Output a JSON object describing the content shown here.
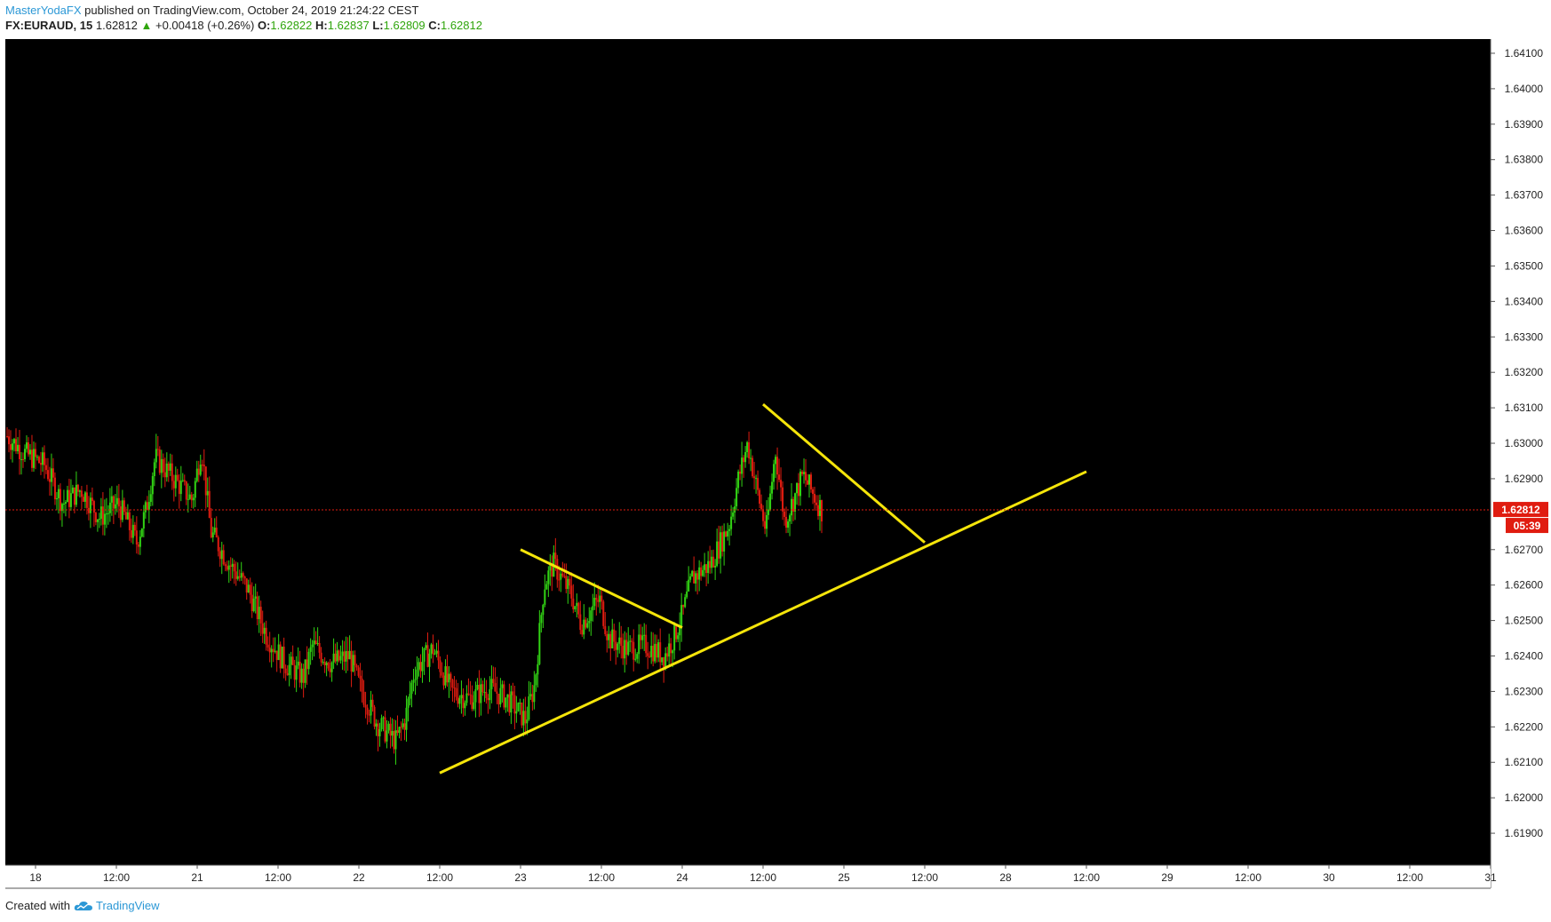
{
  "header": {
    "author": "MasterYodaFX",
    "published": " published on TradingView.com, October 24, 2019 21:24:22 CEST",
    "symbol": "FX:EURAUD, 15",
    "last": "1.62812",
    "arrow": "▲",
    "change": "+0.00418 (+0.26%)",
    "o_label": "O:",
    "o_value": "1.62822",
    "h_label": "H:",
    "h_value": "1.62837",
    "l_label": "L:",
    "l_value": "1.62809",
    "c_label": "C:",
    "c_value": "1.62812"
  },
  "footer": {
    "created_with": "Created with",
    "brand": "TradingView",
    "logo_icon": "tradingview-cloud-icon"
  },
  "colors": {
    "background": "#000000",
    "bull": "#32d414",
    "bear": "#e01c10",
    "trendline": "#f5e50a",
    "price_line": "#e01c10",
    "axis_text": "#222222"
  },
  "chart_data": {
    "type": "candlestick",
    "symbol": "FX:EURAUD",
    "interval": "15",
    "ylim": [
      1.6181,
      1.6414
    ],
    "y_ticks": [
      "1.64100",
      "1.64000",
      "1.63900",
      "1.63800",
      "1.63700",
      "1.63600",
      "1.63500",
      "1.63400",
      "1.63300",
      "1.63200",
      "1.63100",
      "1.63000",
      "1.62900",
      "1.62700",
      "1.62600",
      "1.62500",
      "1.62400",
      "1.62300",
      "1.62200",
      "1.62100",
      "1.62000",
      "1.61900"
    ],
    "x_ticks": [
      "18",
      "12:00",
      "21",
      "12:00",
      "22",
      "12:00",
      "23",
      "12:00",
      "24",
      "12:00",
      "25",
      "12:00",
      "28",
      "12:00",
      "29",
      "12:00",
      "30",
      "12:00",
      "31"
    ],
    "last_price": "1.62812",
    "countdown": "05:39",
    "price_path": [
      [
        0,
        1.6302
      ],
      [
        0.02,
        1.6297
      ],
      [
        0.04,
        1.6294
      ],
      [
        0.06,
        1.6283
      ],
      [
        0.08,
        1.6287
      ],
      [
        0.1,
        1.6279
      ],
      [
        0.12,
        1.6283
      ],
      [
        0.14,
        1.6272
      ],
      [
        0.15,
        1.6281
      ],
      [
        0.16,
        1.6296
      ],
      [
        0.18,
        1.629
      ],
      [
        0.2,
        1.6284
      ],
      [
        0.21,
        1.6299
      ],
      [
        0.22,
        1.6275
      ],
      [
        0.24,
        1.6266
      ],
      [
        0.26,
        1.6259
      ],
      [
        0.28,
        1.6246
      ],
      [
        0.3,
        1.6238
      ],
      [
        0.32,
        1.6234
      ],
      [
        0.33,
        1.6243
      ],
      [
        0.35,
        1.6238
      ],
      [
        0.37,
        1.624
      ],
      [
        0.38,
        1.6232
      ],
      [
        0.4,
        1.6221
      ],
      [
        0.42,
        1.6216
      ],
      [
        0.43,
        1.6222
      ],
      [
        0.44,
        1.6236
      ],
      [
        0.46,
        1.6242
      ],
      [
        0.48,
        1.623
      ],
      [
        0.5,
        1.6228
      ],
      [
        0.52,
        1.6231
      ],
      [
        0.54,
        1.6228
      ],
      [
        0.56,
        1.6222
      ],
      [
        0.57,
        1.6232
      ],
      [
        0.58,
        1.626
      ],
      [
        0.59,
        1.6266
      ],
      [
        0.61,
        1.6257
      ],
      [
        0.62,
        1.6249
      ],
      [
        0.64,
        1.6256
      ],
      [
        0.65,
        1.6245
      ],
      [
        0.67,
        1.6242
      ],
      [
        0.69,
        1.6243
      ],
      [
        0.71,
        1.624
      ],
      [
        0.72,
        1.6245
      ],
      [
        0.73,
        1.6252
      ],
      [
        0.74,
        1.6262
      ],
      [
        0.76,
        1.6266
      ],
      [
        0.78,
        1.6277
      ],
      [
        0.79,
        1.629
      ],
      [
        0.8,
        1.63
      ],
      [
        0.81,
        1.6287
      ],
      [
        0.82,
        1.6275
      ],
      [
        0.83,
        1.6298
      ],
      [
        0.84,
        1.6278
      ],
      [
        0.86,
        1.6291
      ],
      [
        0.88,
        1.6281
      ]
    ],
    "trendlines": [
      {
        "name": "ascending support",
        "from": [
          "22 12:00",
          1.6207
        ],
        "to": [
          "28 12:00",
          1.6292
        ]
      },
      {
        "name": "flag top",
        "from": [
          "23",
          1.627
        ],
        "to": [
          "24",
          1.6248
        ]
      },
      {
        "name": "descending resistance",
        "from": [
          "24 12:00",
          1.6311
        ],
        "to": [
          "25 12:00",
          1.6272
        ]
      }
    ],
    "grid": false
  }
}
